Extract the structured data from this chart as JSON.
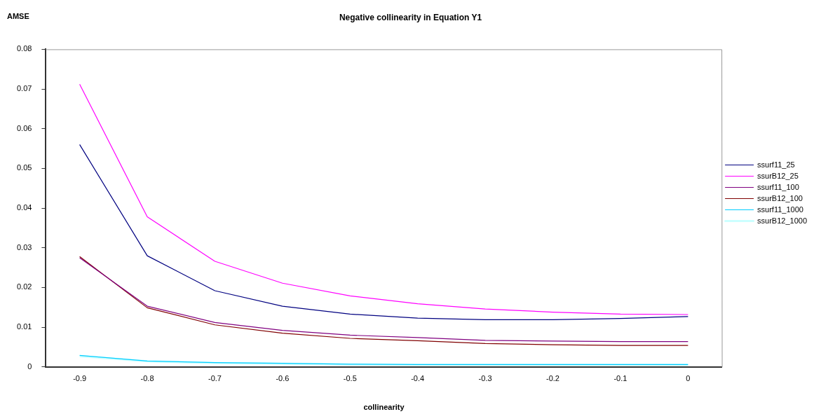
{
  "chart_data": {
    "type": "line",
    "title": "Negative collinearity in Equation Y1",
    "xlabel": "collinearity",
    "ylabel": "AMSE",
    "categories": [
      "-0.9",
      "-0.8",
      "-0.7",
      "-0.6",
      "-0.5",
      "-0.4",
      "-0.3",
      "-0.2",
      "-0.1",
      "0"
    ],
    "series": [
      {
        "name": "ssurf11_25",
        "color": "#000080",
        "values": [
          0.056,
          0.028,
          0.0192,
          0.0153,
          0.0133,
          0.0123,
          0.0119,
          0.0119,
          0.0122,
          0.0127
        ]
      },
      {
        "name": "ssurB12_25",
        "color": "#ff00ff",
        "values": [
          0.0712,
          0.0378,
          0.0266,
          0.0211,
          0.0179,
          0.0159,
          0.0146,
          0.0138,
          0.0133,
          0.0132
        ]
      },
      {
        "name": "ssurf11_100",
        "color": "#800080",
        "values": [
          0.0275,
          0.0153,
          0.0112,
          0.0092,
          0.008,
          0.0074,
          0.0067,
          0.0065,
          0.0064,
          0.0064
        ]
      },
      {
        "name": "ssurB12_100",
        "color": "#800000",
        "values": [
          0.0278,
          0.0149,
          0.0106,
          0.0085,
          0.0072,
          0.0066,
          0.0059,
          0.0056,
          0.0054,
          0.0054
        ]
      },
      {
        "name": "ssurf11_1000",
        "color": "#00ccff",
        "values": [
          0.0029,
          0.0015,
          0.0011,
          0.0009,
          0.0007,
          0.0006,
          0.0006,
          0.0006,
          0.0006,
          0.0006
        ]
      },
      {
        "name": "ssurB12_1000",
        "color": "#ccffff",
        "values": [
          0.0027,
          0.0014,
          0.001,
          0.0008,
          0.0006,
          0.0005,
          0.0005,
          0.0005,
          0.0005,
          0.0005
        ]
      }
    ],
    "ylim": [
      0,
      0.08
    ],
    "yticks": [
      0,
      0.01,
      0.02,
      0.03,
      0.04,
      0.05,
      0.06,
      0.07,
      0.08
    ],
    "grid": false,
    "legend": "right",
    "marker": "none",
    "line_style": "solid"
  }
}
